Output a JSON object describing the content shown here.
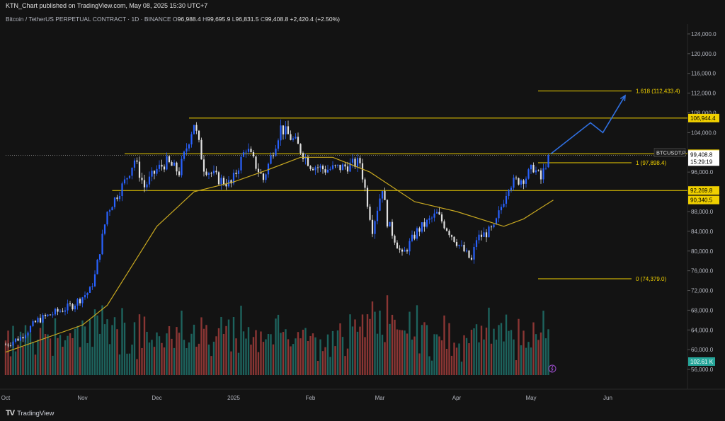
{
  "header": {
    "publish_line": "KTN_Chart published on TradingView.com, May 08, 2025 15:30 UTC+7"
  },
  "legend": {
    "symbol": "Bitcoin / TetherUS PERPETUAL CONTRACT · 1D · BINANCE",
    "o_label": "O",
    "o": "96,988.4",
    "h_label": "H",
    "h": "99,695.9",
    "l_label": "L",
    "l": "96,831.5",
    "c_label": "C",
    "c": "99,408.8",
    "change": "+2,420.4 (+2.50%)"
  },
  "branding": {
    "name": "TradingView"
  },
  "colors": {
    "up": "#2962ff",
    "down": "#e0e0e0",
    "hline": "#f0d000",
    "ma": "#c8a820",
    "arrow": "#2f6fe0",
    "vol_up": "#26a69a",
    "vol_down": "#ef5350"
  },
  "chart_data": {
    "type": "candlestick",
    "y_axis": {
      "ticks": [
        "124,000.0",
        "120,000.0",
        "116,000.0",
        "112,000.0",
        "108,000.0",
        "104,000.0",
        "100,000.0",
        "96,000.0",
        "92,000.0",
        "88,000.0",
        "84,000.0",
        "80,000.0",
        "76,000.0",
        "72,000.0",
        "68,000.0",
        "64,000.0",
        "60,000.0",
        "56,000.0"
      ],
      "range": [
        52000,
        126000
      ]
    },
    "x_axis": {
      "ticks": [
        {
          "label": "Oct",
          "date": "2024-10-01"
        },
        {
          "label": "Nov",
          "date": "2024-11-01"
        },
        {
          "label": "Dec",
          "date": "2024-12-01"
        },
        {
          "label": "2025",
          "date": "2025-01-01"
        },
        {
          "label": "Feb",
          "date": "2025-02-01"
        },
        {
          "label": "Mar",
          "date": "2025-03-01"
        },
        {
          "label": "Apr",
          "date": "2025-04-01"
        },
        {
          "label": "May",
          "date": "2025-05-01"
        },
        {
          "label": "Jun",
          "date": "2025-06-01"
        }
      ]
    },
    "price_path": [
      {
        "date": "2024-10-01",
        "close": 61000
      },
      {
        "date": "2024-10-07",
        "close": 62500
      },
      {
        "date": "2024-10-14",
        "close": 66000
      },
      {
        "date": "2024-10-21",
        "close": 67500
      },
      {
        "date": "2024-10-28",
        "close": 69000
      },
      {
        "date": "2024-11-04",
        "close": 72000
      },
      {
        "date": "2024-11-06",
        "close": 75000
      },
      {
        "date": "2024-11-11",
        "close": 88000
      },
      {
        "date": "2024-11-18",
        "close": 94000
      },
      {
        "date": "2024-11-22",
        "close": 98500
      },
      {
        "date": "2024-11-26",
        "close": 93000
      },
      {
        "date": "2024-12-01",
        "close": 96500
      },
      {
        "date": "2024-12-05",
        "close": 98000
      },
      {
        "date": "2024-12-10",
        "close": 96000
      },
      {
        "date": "2024-12-16",
        "close": 106000
      },
      {
        "date": "2024-12-20",
        "close": 97000
      },
      {
        "date": "2024-12-26",
        "close": 94500
      },
      {
        "date": "2024-12-31",
        "close": 93500
      },
      {
        "date": "2025-01-06",
        "close": 101000
      },
      {
        "date": "2025-01-13",
        "close": 94500
      },
      {
        "date": "2025-01-20",
        "close": 105000
      },
      {
        "date": "2025-01-26",
        "close": 102000
      },
      {
        "date": "2025-02-01",
        "close": 97500
      },
      {
        "date": "2025-02-07",
        "close": 96500
      },
      {
        "date": "2025-02-14",
        "close": 97000
      },
      {
        "date": "2025-02-21",
        "close": 98000
      },
      {
        "date": "2025-02-26",
        "close": 84500
      },
      {
        "date": "2025-03-02",
        "close": 93000
      },
      {
        "date": "2025-03-04",
        "close": 86000
      },
      {
        "date": "2025-03-10",
        "close": 79000
      },
      {
        "date": "2025-03-16",
        "close": 84000
      },
      {
        "date": "2025-03-24",
        "close": 87500
      },
      {
        "date": "2025-03-31",
        "close": 82500
      },
      {
        "date": "2025-04-07",
        "close": 78000
      },
      {
        "date": "2025-04-09",
        "close": 82500
      },
      {
        "date": "2025-04-16",
        "close": 84500
      },
      {
        "date": "2025-04-22",
        "close": 93500
      },
      {
        "date": "2025-04-29",
        "close": 95000
      },
      {
        "date": "2025-05-02",
        "close": 97000
      },
      {
        "date": "2025-05-05",
        "close": 94500
      },
      {
        "date": "2025-05-08",
        "close": 99408.8
      }
    ],
    "moving_average": [
      {
        "date": "2024-10-01",
        "value": 59500
      },
      {
        "date": "2024-11-01",
        "value": 65000
      },
      {
        "date": "2024-11-11",
        "value": 69000
      },
      {
        "date": "2024-12-01",
        "value": 85000
      },
      {
        "date": "2024-12-16",
        "value": 92000
      },
      {
        "date": "2025-01-01",
        "value": 94000
      },
      {
        "date": "2025-01-15",
        "value": 96500
      },
      {
        "date": "2025-01-28",
        "value": 99000
      },
      {
        "date": "2025-02-10",
        "value": 99000
      },
      {
        "date": "2025-02-25",
        "value": 96000
      },
      {
        "date": "2025-03-15",
        "value": 90000
      },
      {
        "date": "2025-04-01",
        "value": 88000
      },
      {
        "date": "2025-04-20",
        "value": 85000
      },
      {
        "date": "2025-04-28",
        "value": 86500
      },
      {
        "date": "2025-05-10",
        "value": 90340.5
      }
    ],
    "horizontal_lines": [
      {
        "value": 106944.4,
        "label": "106,944.4",
        "from": "2024-12-14",
        "style": "solid"
      },
      {
        "value": 99707.6,
        "label": "99,707.6",
        "from": "2024-11-18",
        "style": "solid"
      },
      {
        "value": 92269.8,
        "label": "92,269.8",
        "from": "2024-11-13",
        "style": "solid"
      }
    ],
    "fib_levels": [
      {
        "value": 112433.4,
        "text": "1.618 (112,433.4)",
        "from": "2025-05-08",
        "to": "2025-06-10"
      },
      {
        "value": 97898.4,
        "text": "1 (97,898.4)",
        "from": "2025-05-08",
        "to": "2025-06-10"
      },
      {
        "value": 74379.0,
        "text": "0 (74,379.0)",
        "from": "2025-05-08",
        "to": "2025-06-10"
      }
    ],
    "projection_path": [
      {
        "date": "2025-05-09",
        "value": 99700
      },
      {
        "date": "2025-05-25",
        "value": 106000
      },
      {
        "date": "2025-05-30",
        "value": 104000
      },
      {
        "date": "2025-06-08",
        "value": 111500
      }
    ],
    "axis_labels": [
      {
        "text": "106,944.4",
        "value": 106944.4,
        "kind": "yellow"
      },
      {
        "text": "99,707.6",
        "value": 99707.6,
        "kind": "yellow"
      },
      {
        "text": "92,269.8",
        "value": 92269.8,
        "kind": "yellow"
      },
      {
        "text": "90,340.5",
        "value": 90340.5,
        "kind": "yellow"
      }
    ],
    "price_tag": {
      "symbol": "BTCUSDT.P",
      "price": "99,408.8",
      "countdown": "15:29:19",
      "value": 99408.8
    },
    "volume_tag": {
      "text": "102.61 K"
    },
    "volume": {
      "range": [
        0,
        110000
      ],
      "note_last": "102.61 K"
    },
    "dotted_line_value": 99408.8
  }
}
